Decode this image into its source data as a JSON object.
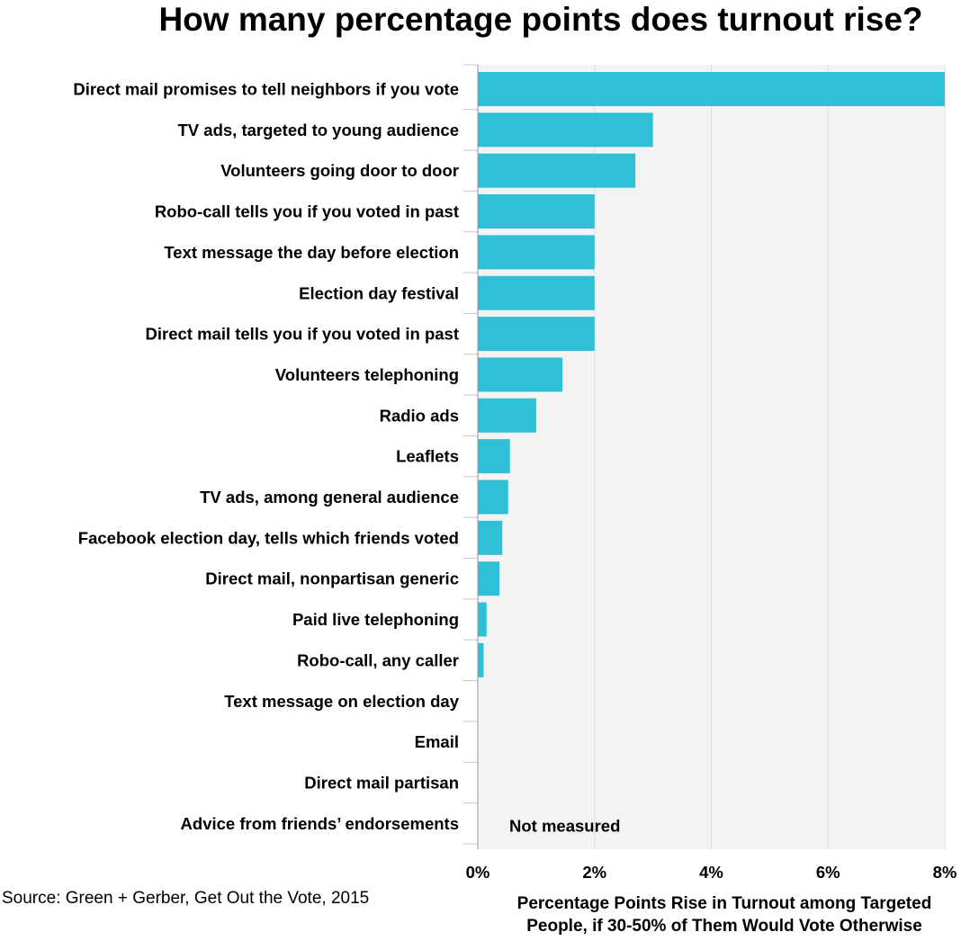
{
  "chart_data": {
    "type": "bar",
    "orientation": "horizontal",
    "title": "How many percentage points does turnout rise?",
    "xlabel_lines": [
      "Percentage Points Rise in Turnout among Targeted",
      "People, if 30-50% of Them  Would Vote Otherwise"
    ],
    "ylabel": "",
    "xlim": [
      0,
      8
    ],
    "xticks": [
      {
        "value": 0,
        "label": "0%"
      },
      {
        "value": 2,
        "label": "2%"
      },
      {
        "value": 4,
        "label": "4%"
      },
      {
        "value": 6,
        "label": "6%"
      },
      {
        "value": 8,
        "label": "8%"
      }
    ],
    "grid": true,
    "categories": [
      "Direct mail promises to tell neighbors if you vote",
      "TV ads, targeted to young audience",
      "Volunteers going door to door",
      "Robo-call tells you if you  voted in past",
      "Text message the day before election",
      "Election day festival",
      "Direct mail tells you if you voted in past",
      "Volunteers telephoning",
      "Radio ads",
      "Leaflets",
      "TV ads, among general audience",
      "Facebook election day, tells which friends voted",
      "Direct mail, nonpartisan generic",
      "Paid live telephoning",
      "Robo-call, any caller",
      "Text message on election day",
      "Email",
      "Direct mail partisan",
      "Advice from friends’ endorsements"
    ],
    "values": [
      8.0,
      3.0,
      2.7,
      2.0,
      2.0,
      2.0,
      2.0,
      1.45,
      1.0,
      0.55,
      0.52,
      0.42,
      0.37,
      0.15,
      0.1,
      0,
      0,
      0,
      null
    ],
    "annotation": "Not measured",
    "bar_color": "#2fbfd6",
    "plot_background": "#f3f3f3",
    "grid_color": "#dedede",
    "source": "Source: Green + Gerber, Get Out the Vote, 2015"
  }
}
